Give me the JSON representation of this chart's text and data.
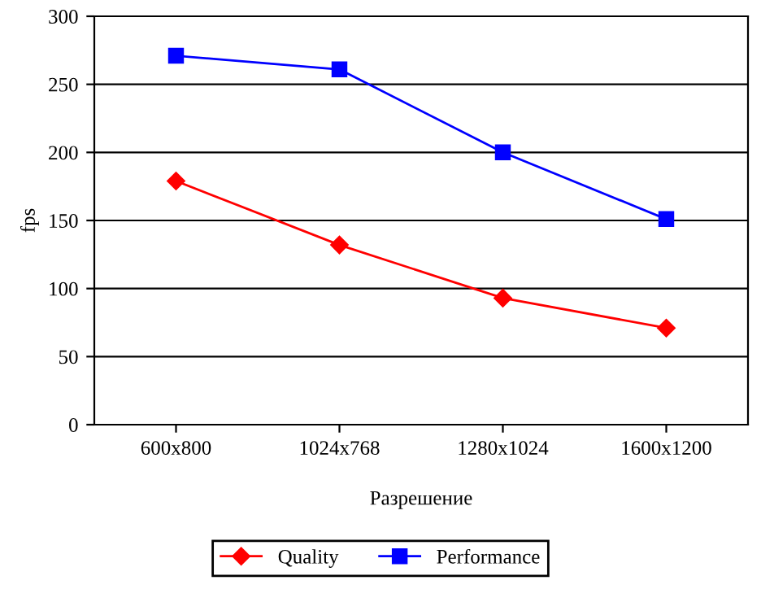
{
  "chart_data": {
    "type": "line",
    "xlabel": "Разрешение",
    "ylabel": "fps",
    "categories": [
      "600x800",
      "1024x768",
      "1280x1024",
      "1600x1200"
    ],
    "series": [
      {
        "name": "Quality",
        "color": "#ff0000",
        "marker": "diamond",
        "values": [
          179,
          132,
          93,
          71
        ]
      },
      {
        "name": "Performance",
        "color": "#0000ff",
        "marker": "square",
        "values": [
          271,
          261,
          200,
          151
        ]
      }
    ],
    "ylim": [
      0,
      300
    ],
    "yticks": [
      0,
      50,
      100,
      150,
      200,
      250,
      300
    ],
    "grid": "y",
    "legend": "bottom"
  }
}
